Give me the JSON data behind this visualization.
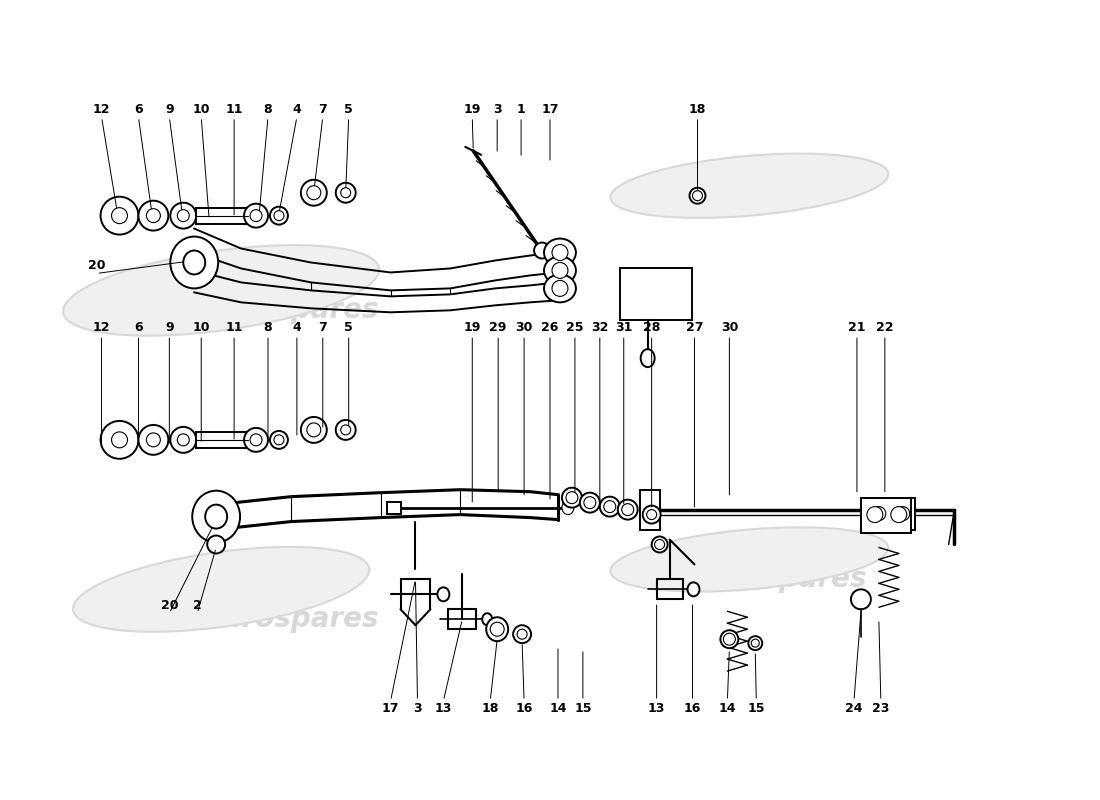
{
  "figsize": [
    11.0,
    8.0
  ],
  "dpi": 100,
  "bg": "#ffffff",
  "lc": "#000000",
  "wm_color": "#cccccc",
  "lw_main": 1.4,
  "lw_thin": 0.8,
  "lw_thick": 2.2,
  "label_fs": 9,
  "upper_labels": [
    [
      "12",
      100,
      108
    ],
    [
      "6",
      137,
      108
    ],
    [
      "9",
      168,
      108
    ],
    [
      "10",
      200,
      108
    ],
    [
      "11",
      233,
      108
    ],
    [
      "8",
      267,
      108
    ],
    [
      "4",
      296,
      108
    ],
    [
      "7",
      322,
      108
    ],
    [
      "5",
      348,
      108
    ],
    [
      "19",
      472,
      108
    ],
    [
      "3",
      497,
      108
    ],
    [
      "1",
      521,
      108
    ],
    [
      "17",
      550,
      108
    ],
    [
      "18",
      698,
      108
    ],
    [
      "20",
      95,
      265
    ]
  ],
  "lower_labels_top": [
    [
      "12",
      100,
      327
    ],
    [
      "6",
      137,
      327
    ],
    [
      "9",
      168,
      327
    ],
    [
      "10",
      200,
      327
    ],
    [
      "11",
      233,
      327
    ],
    [
      "8",
      267,
      327
    ],
    [
      "4",
      296,
      327
    ],
    [
      "7",
      322,
      327
    ],
    [
      "5",
      348,
      327
    ],
    [
      "19",
      472,
      327
    ],
    [
      "29",
      498,
      327
    ],
    [
      "30",
      524,
      327
    ],
    [
      "26",
      550,
      327
    ],
    [
      "25",
      575,
      327
    ],
    [
      "32",
      600,
      327
    ],
    [
      "31",
      624,
      327
    ],
    [
      "28",
      652,
      327
    ],
    [
      "27",
      695,
      327
    ],
    [
      "30",
      730,
      327
    ],
    [
      "21",
      858,
      327
    ],
    [
      "22",
      886,
      327
    ]
  ],
  "lower_labels_left": [
    [
      "20",
      168,
      606
    ],
    [
      "2",
      196,
      606
    ]
  ],
  "lower_labels_bottom": [
    [
      "17",
      390,
      710
    ],
    [
      "3",
      417,
      710
    ],
    [
      "13",
      443,
      710
    ],
    [
      "18",
      490,
      710
    ],
    [
      "16",
      524,
      710
    ],
    [
      "14",
      558,
      710
    ],
    [
      "15",
      583,
      710
    ],
    [
      "13",
      657,
      710
    ],
    [
      "16",
      693,
      710
    ],
    [
      "14",
      728,
      710
    ],
    [
      "15",
      757,
      710
    ],
    [
      "24",
      855,
      710
    ],
    [
      "23",
      882,
      710
    ]
  ]
}
